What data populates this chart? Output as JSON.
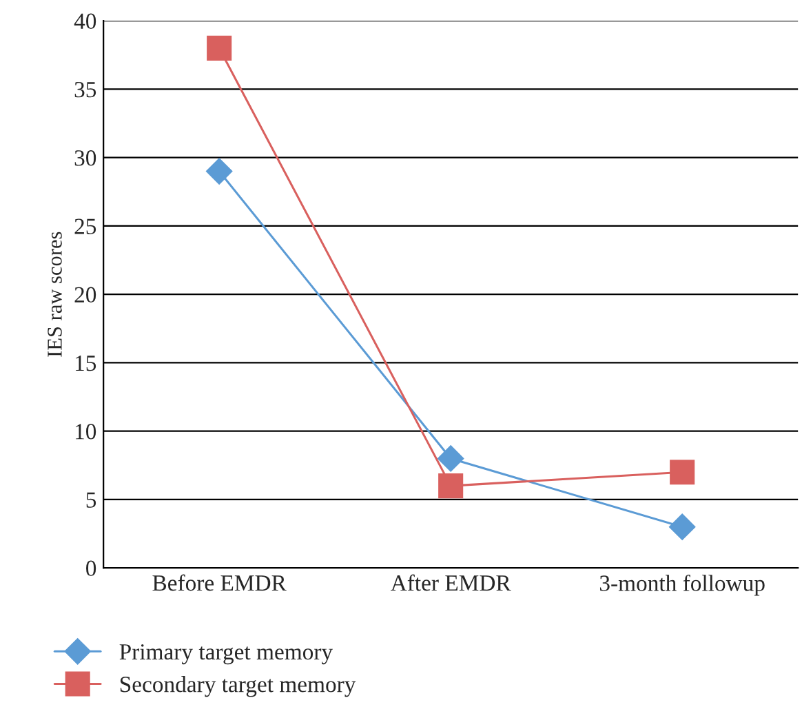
{
  "chart_data": {
    "type": "line",
    "ylabel": "IES raw scores",
    "categories": [
      "Before EMDR",
      "After EMDR",
      "3-month followup"
    ],
    "series": [
      {
        "name": "Primary target memory",
        "color": "#5b9bd5",
        "marker": "diamond",
        "values": [
          29,
          8,
          3
        ]
      },
      {
        "name": "Secondary target memory",
        "color": "#d9605e",
        "marker": "square",
        "values": [
          38,
          6,
          7
        ]
      }
    ],
    "ylim": [
      0,
      40
    ],
    "yticks": [
      0,
      5,
      10,
      15,
      20,
      25,
      30,
      35,
      40
    ],
    "grid": "y",
    "legend": "bottom",
    "line_style": "solid"
  }
}
